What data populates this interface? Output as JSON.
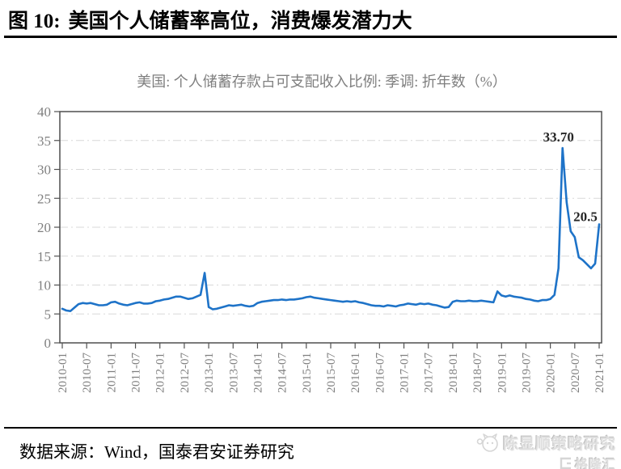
{
  "header": {
    "figure_label": "图 10:",
    "figure_title": "美国个人储蓄率高位，消费爆发潜力大"
  },
  "footer": {
    "source_text": "数据来源：Wind，国泰君安证券研究"
  },
  "watermark": {
    "name": "陈显顺策略研究",
    "brand": "格隆汇"
  },
  "colors": {
    "line": "#1e73c8",
    "grid": "#d8d8d8",
    "axis": "#4f4f4f",
    "tick_label": "#808080",
    "chart_title": "#7f7f7f",
    "annotation": "#262626"
  },
  "chart_data": {
    "type": "line",
    "title": "美国: 个人储蓄存款占可支配收入比例: 季调: 折年数（%）",
    "xlabel": "",
    "ylabel": "",
    "ylim": [
      0,
      40
    ],
    "y_ticks": [
      0,
      5,
      10,
      15,
      20,
      25,
      30,
      35,
      40
    ],
    "grid": "horizontal-dash-dot",
    "legend": "none",
    "x_start": "2010-01",
    "x_end": "2021-01",
    "x_tick_labels": [
      "2010-01",
      "2010-07",
      "2011-01",
      "2011-07",
      "2012-01",
      "2012-07",
      "2013-01",
      "2013-07",
      "2014-01",
      "2014-07",
      "2015-01",
      "2015-07",
      "2016-01",
      "2016-07",
      "2017-01",
      "2017-07",
      "2018-01",
      "2018-07",
      "2019-01",
      "2019-07",
      "2020-01",
      "2020-07",
      "2021-01"
    ],
    "series": [
      {
        "name": "美国个人储蓄存款占可支配收入比例(季调,折年数,%)",
        "frequency": "monthly",
        "monthly_values": [
          5.9,
          5.6,
          5.5,
          6.1,
          6.7,
          6.9,
          6.8,
          6.9,
          6.7,
          6.5,
          6.5,
          6.6,
          7.0,
          7.1,
          6.8,
          6.6,
          6.5,
          6.7,
          6.9,
          7.0,
          6.8,
          6.8,
          6.9,
          7.2,
          7.3,
          7.5,
          7.6,
          7.8,
          8.0,
          8.0,
          7.8,
          7.6,
          7.7,
          8.0,
          8.3,
          12.1,
          6.2,
          5.8,
          5.9,
          6.1,
          6.3,
          6.5,
          6.4,
          6.5,
          6.6,
          6.4,
          6.3,
          6.4,
          6.9,
          7.1,
          7.2,
          7.3,
          7.4,
          7.4,
          7.5,
          7.4,
          7.5,
          7.5,
          7.6,
          7.7,
          7.9,
          8.0,
          7.8,
          7.7,
          7.6,
          7.5,
          7.4,
          7.3,
          7.2,
          7.1,
          7.2,
          7.1,
          7.2,
          7.0,
          6.9,
          6.7,
          6.5,
          6.4,
          6.4,
          6.3,
          6.5,
          6.4,
          6.3,
          6.5,
          6.6,
          6.8,
          6.7,
          6.6,
          6.8,
          6.7,
          6.8,
          6.6,
          6.5,
          6.3,
          6.1,
          6.2,
          7.1,
          7.3,
          7.2,
          7.2,
          7.3,
          7.2,
          7.2,
          7.3,
          7.2,
          7.1,
          7.0,
          8.9,
          8.2,
          8.0,
          8.2,
          8.0,
          7.9,
          7.8,
          7.6,
          7.5,
          7.3,
          7.2,
          7.4,
          7.4,
          7.6,
          8.3,
          12.9,
          33.7,
          24.3,
          19.3,
          18.3,
          14.8,
          14.3,
          13.6,
          12.9,
          13.7,
          20.5
        ]
      }
    ],
    "annotations": [
      {
        "label": "33.70",
        "month": "2020-04",
        "value": 33.7
      },
      {
        "label": "20.5",
        "month": "2021-01",
        "value": 20.5
      }
    ]
  }
}
